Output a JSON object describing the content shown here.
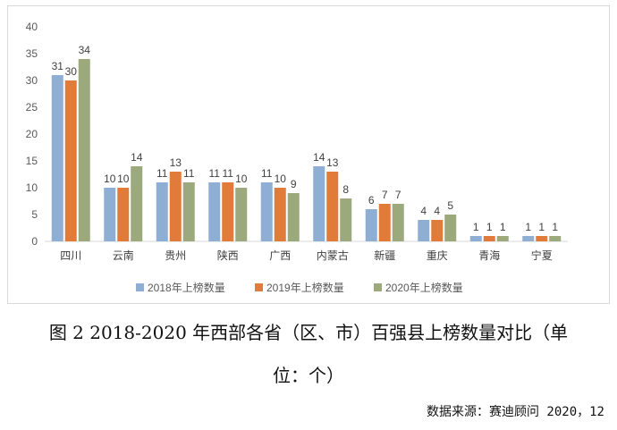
{
  "chart_data": {
    "type": "bar",
    "title": "",
    "categories": [
      "四川",
      "云南",
      "贵州",
      "陕西",
      "广西",
      "内蒙古",
      "新疆",
      "重庆",
      "青海",
      "宁夏"
    ],
    "series": [
      {
        "name": "2018年上榜数量",
        "color": "#8FAED4",
        "values": [
          31,
          10,
          11,
          11,
          11,
          14,
          6,
          4,
          1,
          1
        ]
      },
      {
        "name": "2019年上榜数量",
        "color": "#E07B39",
        "values": [
          30,
          10,
          13,
          11,
          10,
          13,
          7,
          4,
          1,
          1
        ]
      },
      {
        "name": "2020年上榜数量",
        "color": "#9CA97C",
        "values": [
          34,
          14,
          11,
          10,
          9,
          8,
          7,
          5,
          1,
          1
        ]
      }
    ],
    "ylim": [
      0,
      40
    ],
    "yticks": [
      0,
      5,
      10,
      15,
      20,
      25,
      30,
      35,
      40
    ],
    "xlabel": "",
    "ylabel": "",
    "legend": "bottom",
    "grid": false
  },
  "caption_line1": "图 2 2018-2020 年西部各省（区、市）百强县上榜数量对比（单",
  "caption_line2": "位：个）",
  "source": "数据来源：赛迪顾问 2020，12"
}
